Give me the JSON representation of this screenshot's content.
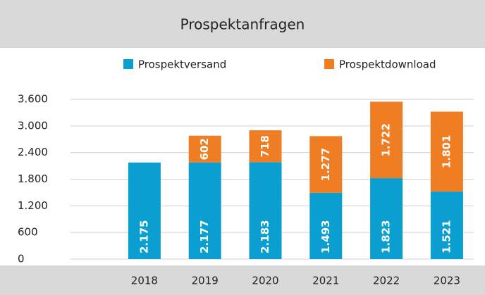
{
  "chart_data": {
    "type": "stacked_bar",
    "title": "Prospektanfragen",
    "categories": [
      "2018",
      "2019",
      "2020",
      "2021",
      "2022",
      "2023"
    ],
    "series": [
      {
        "name": "Prospektversand",
        "color": "#0a9fd0",
        "values": [
          2175,
          2177,
          2183,
          1493,
          1823,
          1521
        ],
        "value_labels": [
          "2.175",
          "2.177",
          "2.183",
          "1.493",
          "1.823",
          "1.521"
        ]
      },
      {
        "name": "Prospektdownload",
        "color": "#ee7d23",
        "values": [
          null,
          602,
          718,
          1277,
          1722,
          1801
        ],
        "value_labels": [
          null,
          "602",
          "718",
          "1.277",
          "1.722",
          "1.801"
        ]
      }
    ],
    "ylim": [
      0,
      3600
    ],
    "yticks": [
      0,
      600,
      {
        "value": 1200,
        "label": "1.200"
      },
      {
        "value": 1800,
        "label": "1.800"
      },
      {
        "value": 2400,
        "label": "2.400"
      },
      {
        "value": 3000,
        "label": "3.000"
      },
      {
        "value": 3600,
        "label": "3.600"
      }
    ],
    "grid": true,
    "legend": "top"
  }
}
